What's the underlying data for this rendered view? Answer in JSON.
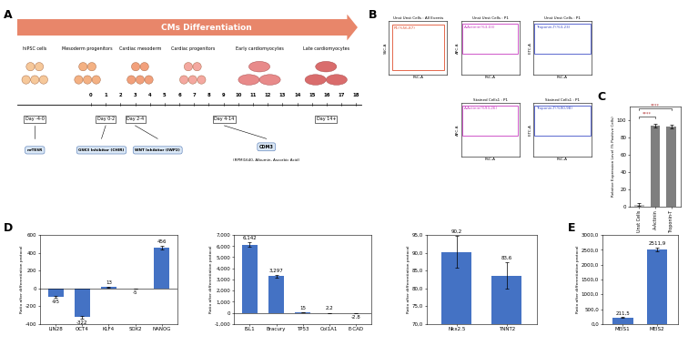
{
  "panel_labels": [
    "A",
    "B",
    "C",
    "D",
    "E"
  ],
  "diagram": {
    "title": "CMs Differentiation",
    "stages": [
      "hiPSC cells",
      "Mesoderm progenitors",
      "Cardiac mesoderm",
      "Cardiac progenitors",
      "Early cardiomyocytes",
      "Late cardiomyocytes"
    ],
    "timeline": [
      0,
      1,
      2,
      3,
      4,
      5,
      6,
      7,
      8,
      9,
      10,
      11,
      12,
      13,
      14,
      15,
      16,
      17,
      18
    ],
    "periods": [
      "Day -4-0",
      "Day 0-2",
      "Day 2-4",
      "Day 4-14",
      "Day 14+"
    ],
    "media": [
      {
        "name": "m-TESR"
      },
      {
        "name": "GSK3 Inhibitor (CHIR)"
      },
      {
        "name": "WNT Inhibitor (IWP2)"
      },
      {
        "name": "CDM3",
        "detail": "(RPMI1640, Albumin, Ascorbic Acid)"
      }
    ]
  },
  "flow_cytometry": {
    "tick_labels": false,
    "plots": [
      {
        "title": "Unst Unst Cells : All Events",
        "xlabel": "FSC-A",
        "ylabel": "SSC-A",
        "gate": "P1(%56,87)",
        "color": "#e05030"
      },
      {
        "title": "Unst Unst Cells : P1",
        "xlabel": "FSC-A",
        "ylabel": "APC-A",
        "gate": "A-Actinin(%3,03)",
        "color": "#c83cc0"
      },
      {
        "title": "Unst Unst Cells : P1",
        "xlabel": "FSC-A",
        "ylabel": "FITC-A",
        "gate": "Troponin-T(%3,23)",
        "color": "#4050c8"
      },
      {
        "title": "Stained Cells1 : P1",
        "xlabel": "FSC-A",
        "ylabel": "APC-A",
        "gate": "A-Actinin(%93,26)",
        "color": "#c83cc0"
      },
      {
        "title": "Stained Cells1 : P1",
        "xlabel": "FSC-A",
        "ylabel": "FITC-A",
        "gate": "Troponin-T(%90,98)",
        "color": "#4050c8"
      }
    ]
  },
  "chart_data": [
    {
      "type": "bar",
      "ylabel": "Relative Expression Level (% Positive Cells)",
      "categories": [
        "Unst Cells",
        "A-Actinin",
        "Troponin-T"
      ],
      "values": [
        2,
        93,
        92
      ],
      "errors": [
        1.5,
        2,
        2
      ],
      "colors": [
        "#bfbfbf",
        "#7f7f7f",
        "#7f7f7f"
      ],
      "ylim": [
        0,
        115
      ],
      "yticks": [
        0,
        20,
        40,
        60,
        80,
        100
      ],
      "annotations": [
        {
          "text": "****",
          "from": "Unst Cells",
          "to": "A-Actinin"
        },
        {
          "text": "****",
          "from": "Unst Cells",
          "to": "Troponin-T"
        }
      ]
    },
    {
      "type": "bar",
      "ylabel": "Ratio after differentiation protocol",
      "categories": [
        "LIN28",
        "OCT4",
        "KLF4",
        "SOX2",
        "NANOG"
      ],
      "values": [
        -95,
        -322,
        13,
        -5,
        456
      ],
      "errors": [
        8,
        15,
        2,
        1,
        20
      ],
      "color": "#4472c4",
      "data_labels": true,
      "ylim": [
        -400,
        600
      ],
      "yticks": [
        -400,
        -200,
        0,
        200,
        400,
        600
      ]
    },
    {
      "type": "bar",
      "ylabel": "Ratio after differentiation protocol",
      "categories": [
        "ISL1",
        "Bracury",
        "TP53",
        "Col1A1",
        "E-CAD"
      ],
      "values": [
        6142,
        3297,
        15,
        2.2,
        -2.8
      ],
      "value_labels": [
        "6,142",
        "3,297",
        "15",
        "2.2",
        "-2.8"
      ],
      "errors": [
        180,
        120,
        0,
        0,
        0
      ],
      "color": "#4472c4",
      "data_labels": true,
      "ylim": [
        -1000,
        7000
      ],
      "yticks": [
        {
          "value": -1000,
          "label": "-1,000"
        },
        0,
        {
          "value": 1000,
          "label": "1,000"
        },
        {
          "value": 2000,
          "label": "2,000"
        },
        {
          "value": 3000,
          "label": "3,000"
        },
        {
          "value": 4000,
          "label": "4,000"
        },
        {
          "value": 5000,
          "label": "5,000"
        },
        {
          "value": 6000,
          "label": "6,000"
        },
        {
          "value": 7000,
          "label": "7,000"
        }
      ]
    },
    {
      "type": "bar",
      "ylabel": "Ratio after differentiation protocol",
      "categories": [
        "Nkx2.5",
        "TNNT2"
      ],
      "values": [
        90.2,
        83.6
      ],
      "value_labels": [
        "90,2",
        "83,6"
      ],
      "errors": [
        4.5,
        3.8
      ],
      "color": "#4472c4",
      "data_labels": true,
      "ylim": [
        70,
        95
      ],
      "yticks": [
        {
          "value": 70,
          "label": "70,0"
        },
        {
          "value": 75,
          "label": "75,0"
        },
        {
          "value": 80,
          "label": "80,0"
        },
        {
          "value": 85,
          "label": "85,0"
        },
        {
          "value": 90,
          "label": "90,0"
        },
        {
          "value": 95,
          "label": "95,0"
        }
      ]
    },
    {
      "type": "bar",
      "ylabel": "Ratio after differentiation protocol",
      "categories": [
        "MEIS1",
        "MEIS2"
      ],
      "values": [
        211.5,
        2511.9
      ],
      "value_labels": [
        "211,5",
        "2511,9"
      ],
      "errors": [
        15,
        60
      ],
      "color": "#4472c4",
      "data_labels": true,
      "ylim": [
        0,
        3000
      ],
      "yticks": [
        {
          "value": 0,
          "label": "0,0"
        },
        {
          "value": 500,
          "label": "500,0"
        },
        {
          "value": 1000,
          "label": "1000,0"
        },
        {
          "value": 1500,
          "label": "1500,0"
        },
        {
          "value": 2000,
          "label": "2000,0"
        },
        {
          "value": 2500,
          "label": "2500,0"
        },
        {
          "value": 3000,
          "label": "3000,0"
        }
      ]
    }
  ]
}
